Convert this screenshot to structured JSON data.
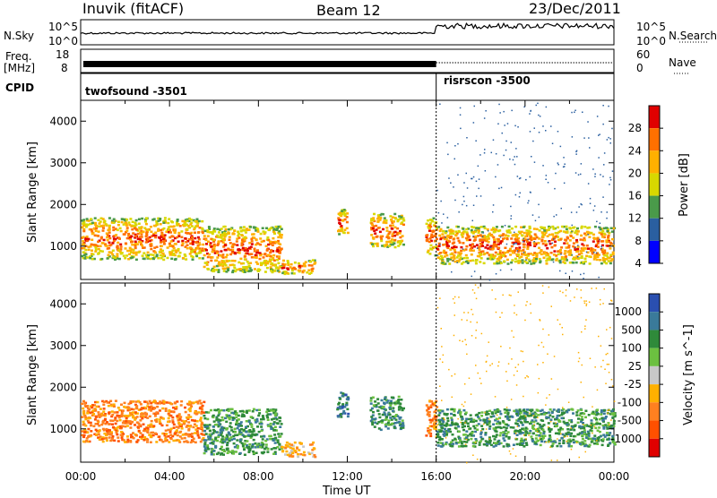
{
  "header": {
    "station": "Inuvik (fitACF)",
    "beam": "Beam 12",
    "date": "23/Dec/2011"
  },
  "top_panels": {
    "nsky_label": "N.Sky",
    "nsky_ticks": [
      "10^5",
      "10^0"
    ],
    "nsearch_label": "N.Search",
    "nsearch_ticks": [
      "10^5",
      "10^0"
    ],
    "freq_label_1": "Freq.",
    "freq_label_2": "[MHz]",
    "freq_ticks": [
      "18",
      "8"
    ],
    "nave_label": "Nave",
    "nave_ticks": [
      "60",
      "0"
    ],
    "cpid_label": "CPID",
    "cpid_segments": [
      {
        "name": "twofsound -3501",
        "start_hour": 0,
        "end_hour": 16
      },
      {
        "name": "risrscon -3500",
        "start_hour": 16,
        "end_hour": 24
      }
    ]
  },
  "chart_data": [
    {
      "type": "heatmap",
      "title": "",
      "ylabel": "Slant Range [km]",
      "xlabel": "",
      "xlim": [
        0,
        24
      ],
      "ylim": [
        200,
        4500
      ],
      "y_ticks": [
        "1000",
        "2000",
        "3000",
        "4000"
      ],
      "colorbar": {
        "label": "Power [dB]",
        "ticks": [
          "28",
          "24",
          "20",
          "16",
          "12",
          "8",
          "4"
        ],
        "colors": [
          "#e00000",
          "#ff7000",
          "#ffb000",
          "#d8d800",
          "#4a9a4a",
          "#2a5fa0",
          "#0000ff"
        ]
      },
      "echo_bands": [
        {
          "start_hour": 0.0,
          "end_hour": 5.5,
          "range_low_km": 700,
          "range_high_km": 1700,
          "peak_db": 28
        },
        {
          "start_hour": 5.5,
          "end_hour": 9.0,
          "range_low_km": 400,
          "range_high_km": 1500,
          "peak_db": 28
        },
        {
          "start_hour": 9.0,
          "end_hour": 10.5,
          "range_low_km": 350,
          "range_high_km": 700,
          "peak_db": 24
        },
        {
          "start_hour": 11.5,
          "end_hour": 12.0,
          "range_low_km": 1300,
          "range_high_km": 1900,
          "peak_db": 16
        },
        {
          "start_hour": 13.0,
          "end_hour": 14.5,
          "range_low_km": 1000,
          "range_high_km": 1800,
          "peak_db": 16
        },
        {
          "start_hour": 15.5,
          "end_hour": 16.0,
          "range_low_km": 800,
          "range_high_km": 1700,
          "peak_db": 24
        },
        {
          "start_hour": 16.0,
          "end_hour": 24.0,
          "range_low_km": 600,
          "range_high_km": 1500,
          "peak_db": 28
        }
      ]
    },
    {
      "type": "heatmap",
      "title": "",
      "ylabel": "Slant Range [km]",
      "xlabel": "Time UT",
      "xlim": [
        0,
        24
      ],
      "ylim": [
        200,
        4500
      ],
      "x_ticks": [
        "00:00",
        "04:00",
        "08:00",
        "12:00",
        "16:00",
        "20:00",
        "00:00"
      ],
      "y_ticks": [
        "1000",
        "2000",
        "3000",
        "4000"
      ],
      "colorbar": {
        "label": "Velocity [m s^-1]",
        "ticks": [
          "1000",
          "500",
          "100",
          "25",
          "-25",
          "-100",
          "-500",
          "-1000"
        ],
        "colors": [
          "#2a4fb0",
          "#3a7a9a",
          "#2f8a3a",
          "#6cc040",
          "#c8c8c8",
          "#ffb000",
          "#ff8020",
          "#ff5000",
          "#e00000"
        ]
      },
      "echo_bands": [
        {
          "start_hour": 0.0,
          "end_hour": 5.5,
          "range_low_km": 700,
          "range_high_km": 1700,
          "velocity": -100
        },
        {
          "start_hour": 5.5,
          "end_hour": 9.0,
          "range_low_km": 400,
          "range_high_km": 1500,
          "velocity": 100
        },
        {
          "start_hour": 9.0,
          "end_hour": 10.5,
          "range_low_km": 350,
          "range_high_km": 700,
          "velocity": -25
        },
        {
          "start_hour": 11.5,
          "end_hour": 12.0,
          "range_low_km": 1300,
          "range_high_km": 1900,
          "velocity": 500
        },
        {
          "start_hour": 13.0,
          "end_hour": 14.5,
          "range_low_km": 1000,
          "range_high_km": 1800,
          "velocity": 100
        },
        {
          "start_hour": 15.5,
          "end_hour": 16.0,
          "range_low_km": 800,
          "range_high_km": 1700,
          "velocity": -100
        },
        {
          "start_hour": 16.0,
          "end_hour": 24.0,
          "range_low_km": 600,
          "range_high_km": 1500,
          "velocity": 100
        }
      ]
    }
  ]
}
